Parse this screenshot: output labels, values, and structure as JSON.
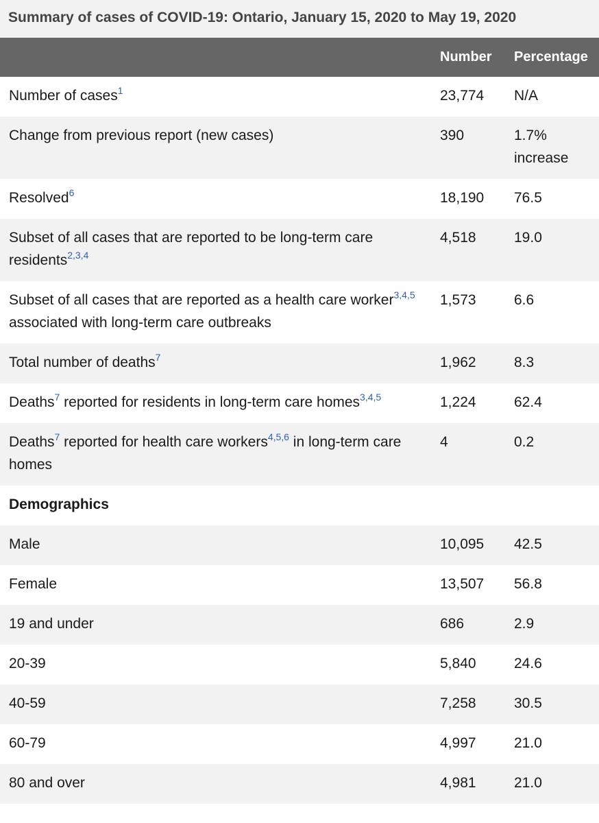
{
  "caption": "Summary of cases of COVID-19: Ontario, January 15, 2020 to May 19, 2020",
  "headers": {
    "label": "",
    "number": "Number",
    "percentage": "Percentage"
  },
  "rows": [
    {
      "label": "Number of cases",
      "sup": "1",
      "number": "23,774",
      "pct": "N/A"
    },
    {
      "label": "Change from previous report (new cases)",
      "number": "390",
      "pct": "1.7% increase"
    },
    {
      "label": "Resolved",
      "sup": "6",
      "number": "18,190",
      "pct": "76.5"
    },
    {
      "label": "Subset of all cases that are reported to be long-term care residents",
      "sup": "2,3,4",
      "number": " 4,518",
      "pct": " 19.0"
    },
    {
      "label": "Subset of all cases that are reported as a health care worker",
      "sup": "3,4,5",
      "after": " associated with long-term care outbreaks",
      "number": " 1,573",
      "pct": "6.6"
    },
    {
      "label": "Total number of deaths",
      "sup": "7",
      "number": "1,962",
      "pct": "8.3"
    },
    {
      "label": "Deaths",
      "sup": "7",
      "after": " reported for residents in long-term care homes",
      "sup2": "3,4,5",
      "number": "1,224",
      "pct": "62.4"
    },
    {
      "label": "Deaths",
      "sup": "7",
      "after": " reported for health care workers",
      "sup2": "4,5,6",
      "after2": " in long-term care homes",
      "number": "4",
      "pct": "0.2"
    },
    {
      "label": "Demographics",
      "section": true,
      "number": "",
      "pct": ""
    },
    {
      "label": "Male",
      "number": "10,095",
      "pct": "42.5"
    },
    {
      "label": "Female",
      "number": "13,507",
      "pct": "56.8"
    },
    {
      "label": "19 and under",
      "number": "686",
      "pct": "2.9"
    },
    {
      "label": "20-39",
      "number": "5,840",
      "pct": "24.6"
    },
    {
      "label": "40-59",
      "number": "7,258",
      "pct": "30.5"
    },
    {
      "label": "60-79",
      "number": "4,997",
      "pct": "21.0"
    },
    {
      "label": "80 and over",
      "number": "4,981",
      "pct": "21.0"
    }
  ]
}
